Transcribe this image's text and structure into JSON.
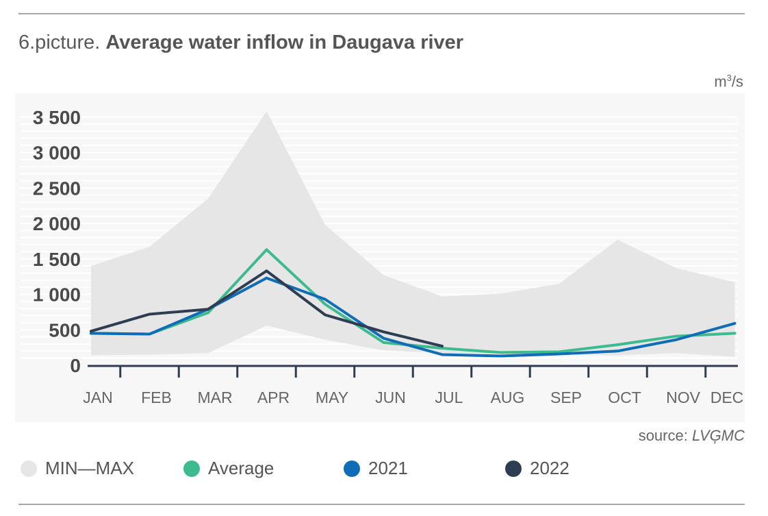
{
  "header": {
    "prefix": "6.picture.",
    "title": "Average water inflow in Daugava river"
  },
  "unit": {
    "base": "m",
    "exp": "3",
    "suffix": "/s"
  },
  "source": {
    "label": "source:",
    "value": "LVĢMC"
  },
  "legend": [
    {
      "label": "MIN—MAX",
      "color": "#e6e6e6"
    },
    {
      "label": "Average",
      "color": "#3dbb8f"
    },
    {
      "label": "2021",
      "color": "#0f6db8"
    },
    {
      "label": "2022",
      "color": "#2f3d52"
    }
  ],
  "chart_data": {
    "type": "line",
    "title": "Average water inflow in Daugava river",
    "ylabel": "m3/s",
    "xlabel": "",
    "categories": [
      "JAN",
      "FEB",
      "MAR",
      "APR",
      "MAY",
      "JUN",
      "JUL",
      "AUG",
      "SEP",
      "OCT",
      "NOV",
      "DEC"
    ],
    "ylim": [
      0,
      3500
    ],
    "yticks": [
      0,
      500,
      1000,
      1500,
      2000,
      2500,
      3000,
      3500
    ],
    "ytick_labels": [
      "0",
      "500",
      "1 000",
      "1 500",
      "2 000",
      "2 500",
      "3 000",
      "3 500"
    ],
    "grid": true,
    "band": {
      "name": "MIN—MAX",
      "min": [
        140,
        150,
        170,
        560,
        360,
        210,
        170,
        160,
        150,
        140,
        170,
        120
      ],
      "max": [
        1400,
        1670,
        2350,
        3580,
        1980,
        1270,
        970,
        1010,
        1150,
        1770,
        1370,
        1170
      ]
    },
    "series": [
      {
        "name": "Average",
        "values": [
          450,
          440,
          740,
          1630,
          860,
          320,
          240,
          180,
          190,
          290,
          410,
          450
        ]
      },
      {
        "name": "2021",
        "values": [
          450,
          440,
          790,
          1230,
          930,
          380,
          150,
          130,
          160,
          200,
          360,
          590
        ]
      },
      {
        "name": "2022",
        "values": [
          480,
          720,
          790,
          1330,
          710,
          470,
          270,
          null,
          null,
          null,
          null,
          null
        ]
      }
    ]
  }
}
